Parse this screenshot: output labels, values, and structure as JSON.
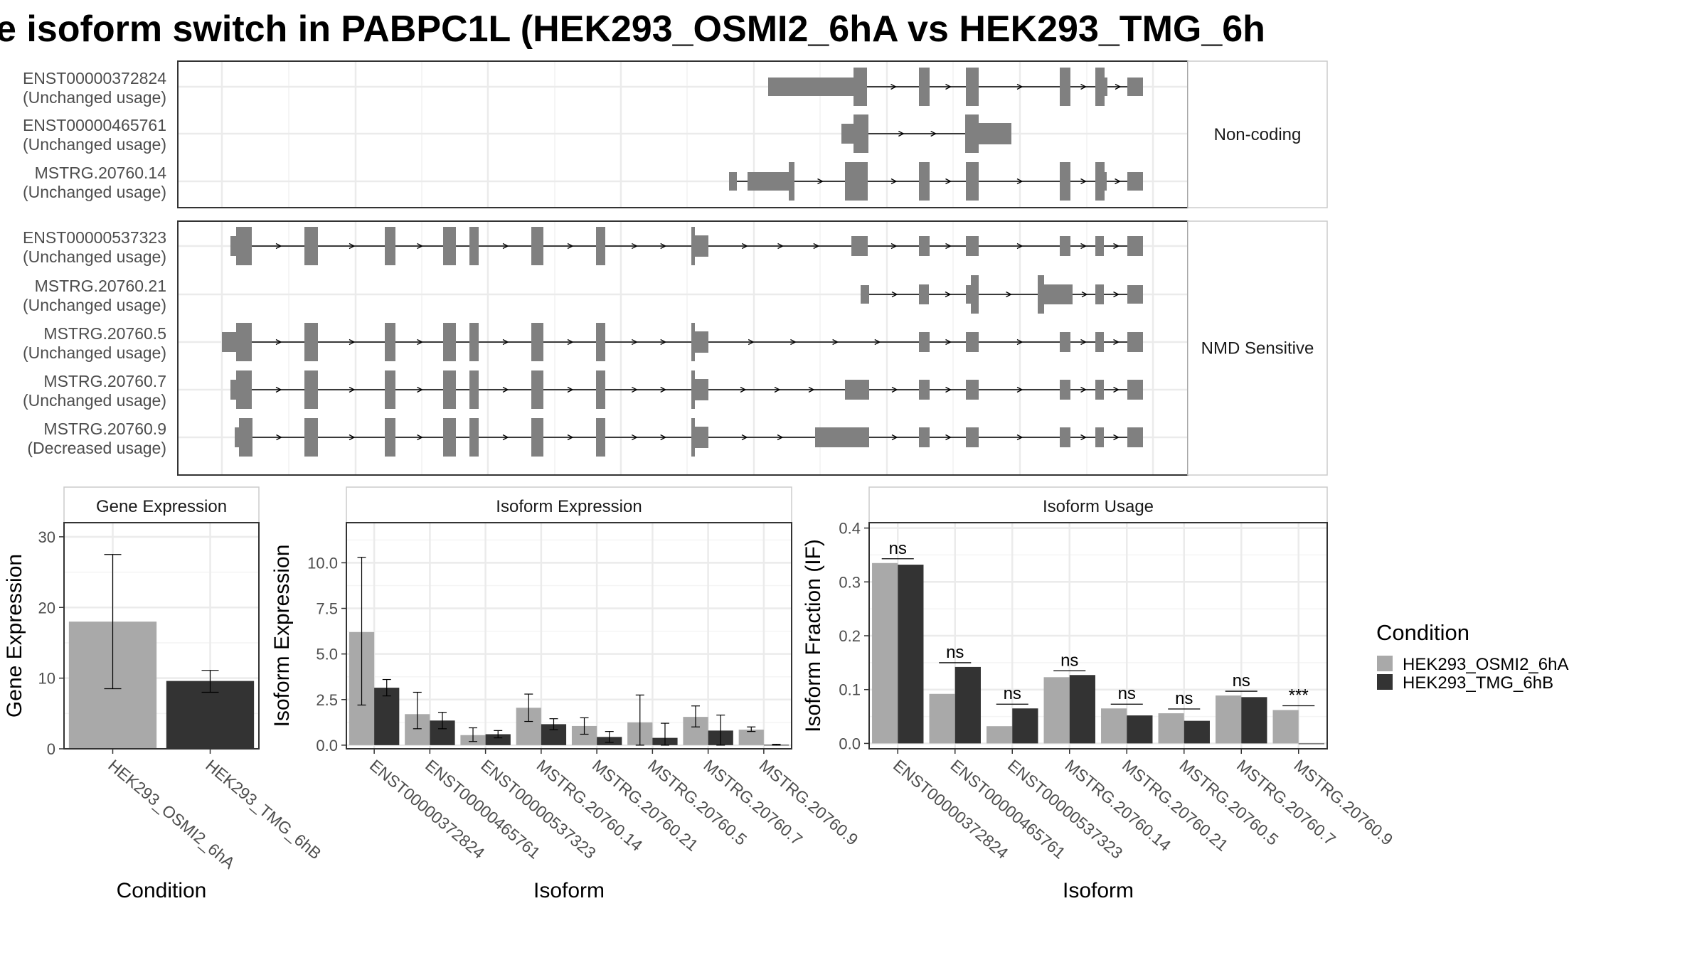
{
  "title": "e isoform switch in PABPC1L (HEK293_OSMI2_6hA vs HEK293_TMG_6h",
  "structure": {
    "groups": [
      {
        "label": "Non-coding",
        "isoforms": [
          {
            "id": "ENST00000372824",
            "usage": "(Unchanged usage)"
          },
          {
            "id": "ENST00000465761",
            "usage": "(Unchanged usage)"
          },
          {
            "id": "MSTRG.20760.14",
            "usage": "(Unchanged usage)"
          }
        ]
      },
      {
        "label": "NMD Sensitive",
        "isoforms": [
          {
            "id": "ENST00000537323",
            "usage": "(Unchanged usage)"
          },
          {
            "id": "MSTRG.20760.21",
            "usage": "(Unchanged usage)"
          },
          {
            "id": "MSTRG.20760.5",
            "usage": "(Unchanged usage)"
          },
          {
            "id": "MSTRG.20760.7",
            "usage": "(Unchanged usage)"
          },
          {
            "id": "MSTRG.20760.9",
            "usage": "(Decreased usage)"
          }
        ]
      }
    ]
  },
  "legend": {
    "title": "Condition",
    "items": [
      {
        "label": "HEK293_OSMI2_6hA",
        "color": "#a9a9a9"
      },
      {
        "label": "HEK293_TMG_6hB",
        "color": "#333333"
      }
    ]
  },
  "chart_data": [
    {
      "type": "bar",
      "title": "Gene Expression",
      "xlabel": "Condition",
      "ylabel": "Gene Expression",
      "ylim": [
        0,
        32
      ],
      "yticks": [
        "0",
        "10",
        "20",
        "30"
      ],
      "categories": [
        "HEK293_OSMI2_6hA",
        "HEK293_TMG_6hB"
      ],
      "values": [
        18.0,
        9.6
      ],
      "error_low": [
        8.5,
        8.0
      ],
      "error_high": [
        27.5,
        11.1
      ],
      "colors": [
        "#a9a9a9",
        "#333333"
      ]
    },
    {
      "type": "bar",
      "title": "Isoform Expression",
      "xlabel": "Isoform",
      "ylabel": "Isoform Expression",
      "ylim": [
        -0.2,
        12.2
      ],
      "yticks": [
        "0.0",
        "2.5",
        "5.0",
        "7.5",
        "10.0"
      ],
      "categories": [
        "ENST00000372824",
        "ENST00000465761",
        "ENST00000537323",
        "MSTRG.20760.14",
        "MSTRG.20760.21",
        "MSTRG.20760.5",
        "MSTRG.20760.7",
        "MSTRG.20760.9"
      ],
      "series": [
        {
          "name": "HEK293_OSMI2_6hA",
          "color": "#a9a9a9",
          "values": [
            6.2,
            1.7,
            0.55,
            2.05,
            1.05,
            1.25,
            1.55,
            0.85
          ],
          "error_low": [
            2.2,
            0.9,
            0.2,
            1.3,
            0.6,
            0.0,
            1.0,
            0.75
          ],
          "error_high": [
            10.3,
            2.9,
            0.95,
            2.8,
            1.5,
            2.75,
            2.15,
            1.0
          ]
        },
        {
          "name": "HEK293_TMG_6hB",
          "color": "#333333",
          "values": [
            3.15,
            1.35,
            0.6,
            1.15,
            0.45,
            0.4,
            0.8,
            0.02
          ],
          "error_low": [
            2.7,
            0.9,
            0.4,
            0.85,
            0.15,
            0.0,
            0.0,
            0.0
          ],
          "error_high": [
            3.6,
            1.8,
            0.8,
            1.45,
            0.75,
            1.2,
            1.65,
            0.05
          ]
        }
      ]
    },
    {
      "type": "bar",
      "title": "Isoform Usage",
      "xlabel": "Isoform",
      "ylabel": "Isoform Fraction (IF)",
      "ylim": [
        -0.01,
        0.41
      ],
      "yticks": [
        "0.0",
        "0.1",
        "0.2",
        "0.3",
        "0.4"
      ],
      "categories": [
        "ENST00000372824",
        "ENST00000465761",
        "ENST00000537323",
        "MSTRG.20760.14",
        "MSTRG.20760.21",
        "MSTRG.20760.5",
        "MSTRG.20760.7",
        "MSTRG.20760.9"
      ],
      "series": [
        {
          "name": "HEK293_OSMI2_6hA",
          "color": "#a9a9a9",
          "values": [
            0.335,
            0.092,
            0.032,
            0.123,
            0.065,
            0.056,
            0.089,
            0.062
          ]
        },
        {
          "name": "HEK293_TMG_6hB",
          "color": "#333333",
          "values": [
            0.332,
            0.142,
            0.065,
            0.127,
            0.052,
            0.042,
            0.086,
            0.0
          ]
        }
      ],
      "significance": [
        "ns",
        "ns",
        "ns",
        "ns",
        "ns",
        "ns",
        "ns",
        "***"
      ]
    }
  ]
}
